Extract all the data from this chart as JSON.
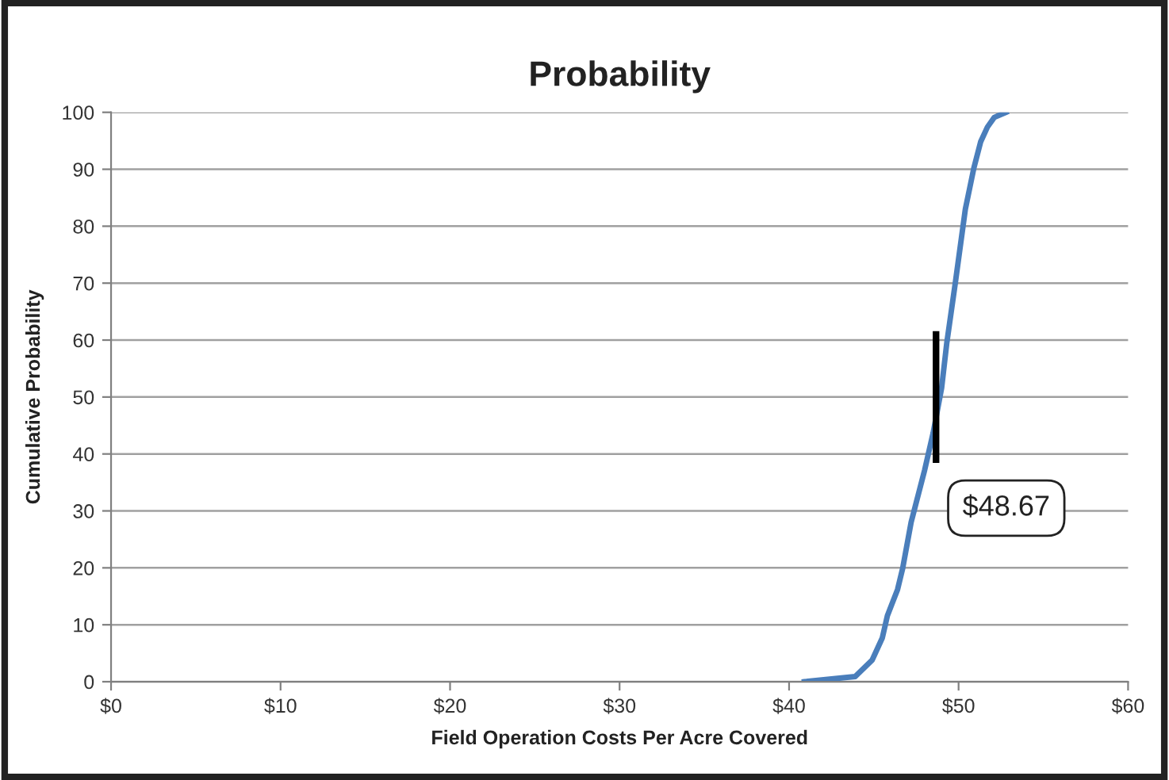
{
  "chart_data": {
    "type": "line",
    "title": "Probability",
    "xlabel": "Field Operation Costs Per Acre Covered",
    "ylabel": "Cumulative Probability",
    "x": [
      40.9,
      43.9,
      44.9,
      45.5,
      45.8,
      46.4,
      46.7,
      47.2,
      48.0,
      48.5,
      49.0,
      49.3,
      49.8,
      50.4,
      50.9,
      51.3,
      51.7,
      52.1,
      52.8
    ],
    "series": [
      {
        "color": "#4a7ebb",
        "values": [
          0,
          0.9,
          3.8,
          7.7,
          11.6,
          16.2,
          19.9,
          28,
          37.2,
          43.7,
          51.6,
          59.4,
          69.9,
          83,
          90.2,
          94.8,
          97.4,
          99.1,
          100
        ]
      }
    ],
    "xlim": [
      0,
      60
    ],
    "xticks": [
      {
        "value": 0,
        "label": "$0"
      },
      {
        "value": 10,
        "label": "$10"
      },
      {
        "value": 20,
        "label": "$20"
      },
      {
        "value": 30,
        "label": "$30"
      },
      {
        "value": 40,
        "label": "$40"
      },
      {
        "value": 50,
        "label": "$50"
      },
      {
        "value": 60,
        "label": "$60"
      }
    ],
    "ylim": [
      0,
      100
    ],
    "yticks": [
      0,
      10,
      20,
      30,
      40,
      50,
      60,
      70,
      80,
      90,
      100
    ],
    "grid": "y",
    "marker": "none",
    "line_style": "solid",
    "ref_lines": [
      {
        "axis": "x",
        "value": 48.67,
        "label": "$48.67",
        "color": "#000000"
      }
    ]
  }
}
